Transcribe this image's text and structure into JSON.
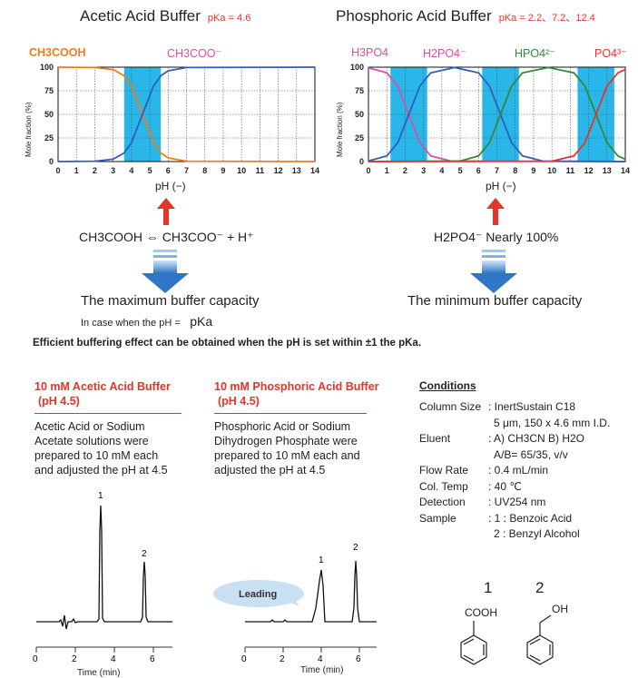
{
  "titles": {
    "left": "Acetic Acid Buffer",
    "left_pka": "pKa = 4.6",
    "right": "Phosphoric Acid Buffer",
    "right_pka": "pKa = 2.2、7.2、12.4"
  },
  "species_left": [
    "CH3COOH",
    "CH3COO⁻"
  ],
  "species_right": [
    "H3PO4",
    "H2PO4⁻",
    "HPO4²⁻",
    "PO4³⁻"
  ],
  "axis": {
    "ylabel": "Mole fraction (%)",
    "xlabel": "pH (−)",
    "x_ticks": [
      "0",
      "1",
      "2",
      "3",
      "4",
      "5",
      "6",
      "7",
      "8",
      "9",
      "10",
      "11",
      "12",
      "13",
      "14"
    ],
    "y_ticks": [
      "0",
      "25",
      "50",
      "75",
      "100"
    ]
  },
  "chart_data": [
    {
      "type": "line",
      "xlabel": "pH (−)",
      "ylabel": "Mole fraction (%)",
      "xlim": [
        0,
        14
      ],
      "ylim": [
        0,
        100
      ],
      "pka": [
        4.6
      ],
      "buffer_bands": [
        [
          3.6,
          5.6
        ]
      ],
      "series": [
        {
          "name": "CH3COOH",
          "color": "#f07c19",
          "x": [
            0,
            2,
            3,
            3.6,
            4,
            4.6,
            5.2,
            5.6,
            6,
            7,
            14
          ],
          "y": [
            100,
            99.6,
            97.5,
            90.9,
            80,
            50,
            20,
            9.1,
            3.8,
            0.4,
            0
          ]
        },
        {
          "name": "CH3COO⁻",
          "color": "#2d5fbf",
          "x": [
            0,
            2,
            3,
            3.6,
            4,
            4.6,
            5.2,
            5.6,
            6,
            7,
            14
          ],
          "y": [
            0,
            0.4,
            2.5,
            9.1,
            20,
            50,
            80,
            90.9,
            96.2,
            99.6,
            100
          ]
        }
      ]
    },
    {
      "type": "line",
      "xlabel": "pH (−)",
      "ylabel": "Mole fraction (%)",
      "xlim": [
        0,
        14
      ],
      "ylim": [
        0,
        100
      ],
      "pka": [
        2.2,
        7.2,
        12.4
      ],
      "buffer_bands": [
        [
          1.2,
          3.2
        ],
        [
          6.2,
          8.2
        ],
        [
          11.4,
          13.4
        ]
      ],
      "series": [
        {
          "name": "H3PO4",
          "color": "#d94fa5",
          "x": [
            0,
            1,
            1.6,
            2.2,
            2.8,
            3.4,
            4.5,
            14
          ],
          "y": [
            99.4,
            94,
            80,
            50,
            20,
            6,
            0.5,
            0
          ]
        },
        {
          "name": "H2PO4⁻",
          "color": "#2d5fbf",
          "x": [
            0,
            1,
            1.6,
            2.2,
            2.8,
            3.4,
            4.7,
            6,
            6.6,
            7.2,
            7.8,
            8.4,
            9.5,
            14
          ],
          "y": [
            0.6,
            6,
            20,
            50,
            80,
            94,
            99.6,
            94,
            80,
            50,
            20,
            6,
            0.5,
            0
          ]
        },
        {
          "name": "HPO4²⁻",
          "color": "#2f8a3a",
          "x": [
            0,
            5,
            6,
            6.6,
            7.2,
            7.8,
            8.4,
            9.8,
            11.2,
            11.8,
            12.4,
            13,
            13.6,
            14
          ],
          "y": [
            0,
            0.6,
            6,
            20,
            50,
            80,
            94,
            99.6,
            94,
            80,
            50,
            20,
            6,
            2.5
          ]
        },
        {
          "name": "PO4³⁻",
          "color": "#e8332a",
          "x": [
            0,
            10,
            11.2,
            11.8,
            12.4,
            13,
            13.6,
            14
          ],
          "y": [
            0,
            0.4,
            6,
            20,
            50,
            80,
            94,
            97.5
          ]
        }
      ]
    },
    {
      "type": "line",
      "title": "10 mM Acetic Acid Buffer (pH 4.5)",
      "xlabel": "Time (min)",
      "x_ticks": [
        "0",
        "2",
        "4",
        "6"
      ],
      "xlim": [
        0,
        7
      ],
      "peaks": [
        {
          "label": "1",
          "time": 3.4,
          "relative_height": 1.0
        },
        {
          "label": "2",
          "time": 5.6,
          "relative_height": 0.55
        }
      ]
    },
    {
      "type": "line",
      "title": "10 mM Phosphoric Acid Buffer (pH 4.5)",
      "xlabel": "Time (min)",
      "x_ticks": [
        "0",
        "2",
        "4",
        "6"
      ],
      "xlim": [
        0,
        7
      ],
      "peaks": [
        {
          "label": "1",
          "time": 4.0,
          "relative_height": 0.55
        },
        {
          "label": "2",
          "time": 5.8,
          "relative_height": 0.6
        }
      ]
    }
  ],
  "reaction_left": "CH3COOH ⇔ CH3COO⁻ + H⁺",
  "reaction_right": "H2PO4⁻ Nearly 100%",
  "capacity_left": "The maximum buffer capacity",
  "capacity_right": "The minimum buffer capacity",
  "incase_label": "In case when the pH =",
  "incase_value": "pKa",
  "efficient_text": "Efficient buffering effect can be obtained when the pH is set within ±1 the pKa.",
  "chrom_left": {
    "head1": "10 mM Acetic Acid Buffer",
    "head2": "(pH 4.5)",
    "desc": [
      "Acetic Acid or Sodium",
      "Acetate solutions were",
      "prepared to 10 mM each",
      "and adjusted the pH at 4.5"
    ],
    "peak1": "1",
    "peak2": "2",
    "xlabel": "Time (min)"
  },
  "chrom_right": {
    "head1": "10 mM Phosphoric Acid Buffer",
    "head2": "(pH 4.5)",
    "desc": [
      "Phosphoric Acid or Sodium",
      "Dihydrogen Phosphate were",
      "prepared to 10 mM each and",
      "adjusted the pH at 4.5"
    ],
    "peak1": "1",
    "peak2": "2",
    "leading": "Leading",
    "xlabel": "Time (min)"
  },
  "conditions": {
    "title": "Conditions",
    "rows": [
      {
        "label": "Column Size",
        "value": ": InertSustain C18"
      },
      {
        "label": "",
        "value": "5 μm, 150 x 4.6 mm I.D."
      },
      {
        "label": "Eluent",
        "value": ": A) CH3CN  B) H2O"
      },
      {
        "label": "",
        "value": "A/B= 65/35, v/v"
      },
      {
        "label": "Flow Rate",
        "value": ": 0.4 mL/min"
      },
      {
        "label": "Col. Temp",
        "value": ": 40 ℃"
      },
      {
        "label": "Detection",
        "value": ": UV254 nm"
      },
      {
        "label": "Sample",
        "value": ": 1 : Benzoic Acid"
      },
      {
        "label": "",
        "value": "2 : Benzyl Alcohol"
      }
    ]
  },
  "structures": {
    "n1": "1",
    "n2": "2",
    "label1": "COOH",
    "label2": "OH"
  }
}
